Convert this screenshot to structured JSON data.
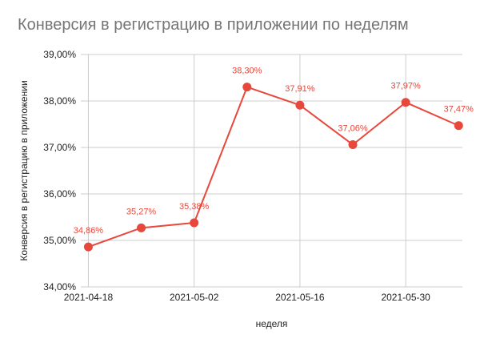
{
  "chart_data": {
    "type": "line",
    "title": "Конверсия в регистрацию в приложении по неделям",
    "xlabel": "неделя",
    "ylabel": "Конверсия в регистрацию в приложении",
    "x": [
      "2021-04-18",
      "2021-04-25",
      "2021-05-02",
      "2021-05-09",
      "2021-05-16",
      "2021-05-23",
      "2021-05-30",
      "2021-06-06"
    ],
    "series": [
      {
        "values": [
          34.86,
          35.27,
          35.38,
          38.3,
          37.91,
          37.06,
          37.97,
          37.47
        ],
        "data_labels": [
          "34,86%",
          "35,27%",
          "35,38%",
          "38,30%",
          "37,91%",
          "37,06%",
          "37,97%",
          "37,47%"
        ],
        "color": "#e8473b"
      }
    ],
    "ylim": [
      34,
      39
    ],
    "y_ticks": [
      {
        "value": 34,
        "label": "34,00%"
      },
      {
        "value": 35,
        "label": "35,00%"
      },
      {
        "value": 36,
        "label": "36,00%"
      },
      {
        "value": 37,
        "label": "37,00%"
      },
      {
        "value": 38,
        "label": "38,00%"
      },
      {
        "value": 39,
        "label": "39,00%"
      }
    ],
    "x_ticks": [
      "2021-04-18",
      "2021-05-02",
      "2021-05-16",
      "2021-05-30"
    ],
    "grid": true,
    "colors": {
      "line": "#e8473b",
      "grid": "#cccccc",
      "title": "#757575"
    }
  }
}
